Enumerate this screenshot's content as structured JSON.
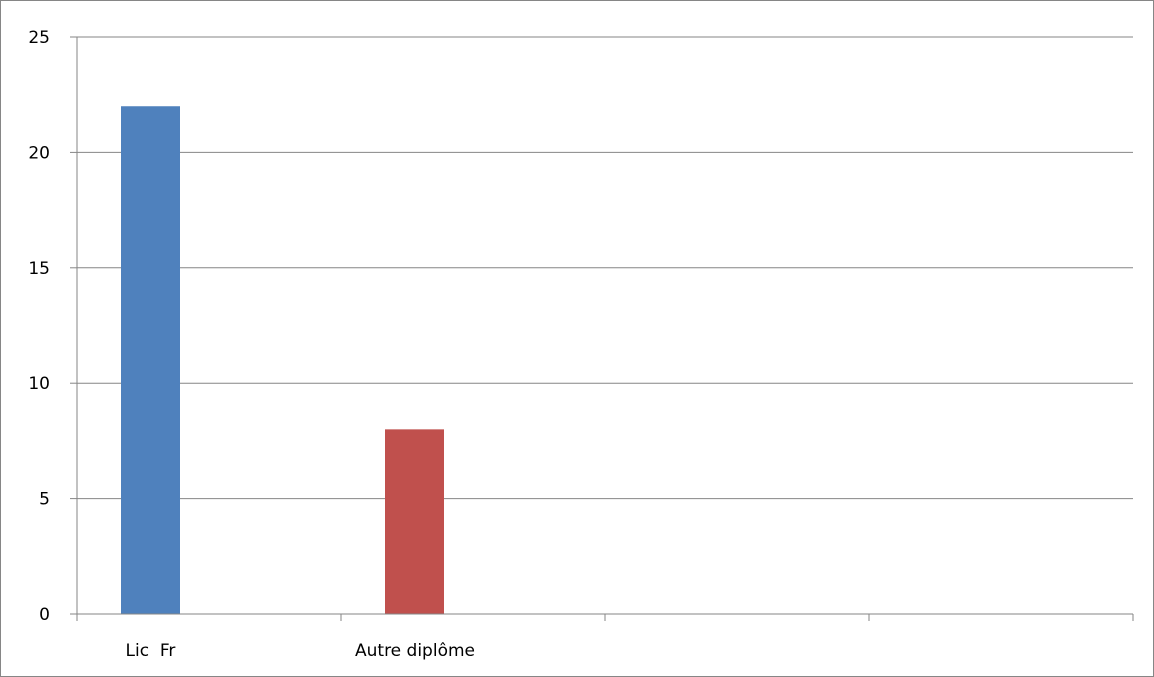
{
  "chart_data": {
    "type": "bar",
    "categories": [
      "Lic  Fr",
      "Autre diplôme",
      "",
      ""
    ],
    "values": [
      22,
      8,
      null,
      null
    ],
    "bar_colors": [
      "#4F81BD",
      "#C0504D"
    ],
    "ylim": [
      0,
      25
    ],
    "yticks": [
      0,
      5,
      10,
      15,
      20,
      25
    ],
    "grid": true,
    "legend": "none",
    "colors": {
      "gridline": "#868686",
      "axis": "#868686",
      "frame": "#868686"
    }
  }
}
